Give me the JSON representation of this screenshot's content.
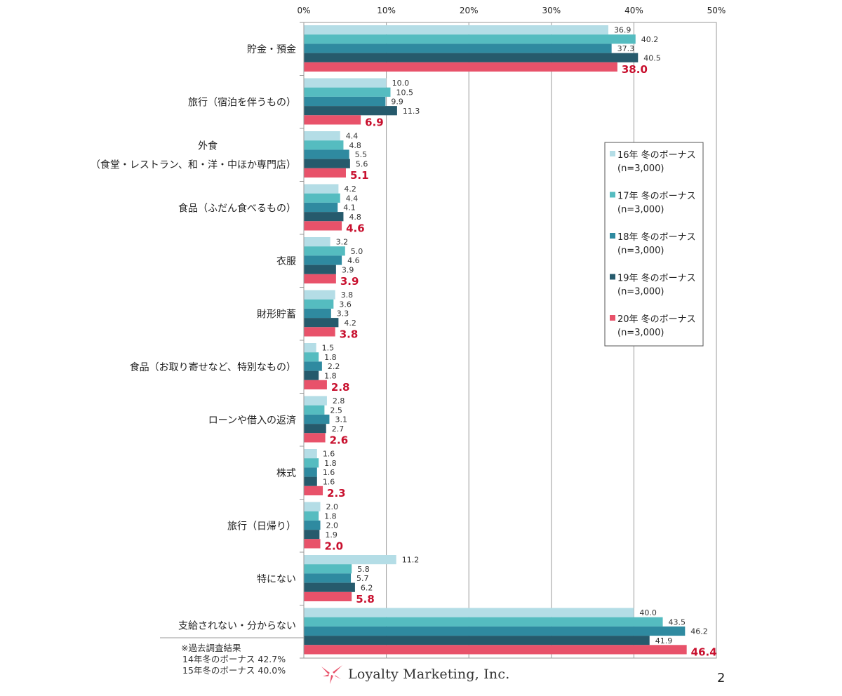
{
  "chart_data": {
    "type": "bar",
    "orientation": "horizontal",
    "categories": [
      "貯金・預金",
      "旅行（宿泊を伴うもの）",
      "外食\n（食堂・レストラン、和・洋・中ほか専門店）",
      "食品（ふだん食べるもの）",
      "衣服",
      "財形貯蓄",
      "食品（お取り寄せなど、特別なもの）",
      "ローンや借入の返済",
      "株式",
      "旅行（日帰り）",
      "特にない",
      "支給されない・分からない"
    ],
    "series": [
      {
        "name": "16年  冬のボーナス",
        "n": "(n=3,000)",
        "color": "#b4dde6",
        "values": [
          36.9,
          10.0,
          4.4,
          4.2,
          3.2,
          3.8,
          1.5,
          2.8,
          1.6,
          2.0,
          11.2,
          40.0
        ]
      },
      {
        "name": "17年  冬のボーナス",
        "n": "(n=3,000)",
        "color": "#55bcc0",
        "values": [
          40.2,
          10.5,
          4.8,
          4.4,
          5.0,
          3.6,
          1.8,
          2.5,
          1.8,
          1.8,
          5.8,
          43.5
        ]
      },
      {
        "name": "18年  冬のボーナス",
        "n": "(n=3,000)",
        "color": "#2f8aa0",
        "values": [
          37.3,
          9.9,
          5.5,
          4.1,
          4.6,
          3.3,
          2.2,
          3.1,
          1.6,
          2.0,
          5.7,
          46.2
        ]
      },
      {
        "name": "19年  冬のボーナス",
        "n": "(n=3,000)",
        "color": "#265a6c",
        "values": [
          40.5,
          11.3,
          5.6,
          4.8,
          3.9,
          4.2,
          1.8,
          2.7,
          1.6,
          1.9,
          6.2,
          41.9
        ]
      },
      {
        "name": "20年  冬のボーナス",
        "n": "(n=3,000)",
        "color": "#e8526a",
        "highlight": true,
        "values": [
          38.0,
          6.9,
          5.1,
          4.6,
          3.9,
          3.8,
          2.8,
          2.6,
          2.3,
          2.0,
          5.8,
          46.4
        ]
      }
    ],
    "xlim": [
      0,
      50
    ],
    "x_ticks": [
      "0%",
      "10%",
      "20%",
      "30%",
      "40%",
      "50%"
    ],
    "x_axis_position": "top",
    "grid": true,
    "legend_placement": "right",
    "highlight_color": "#c8102e"
  },
  "note": {
    "heading": "※過去調査結果",
    "lines": [
      "14年冬のボーナス  42.7%",
      "15年冬のボーナス  40.0%"
    ]
  },
  "logo_text": "Loyalty Marketing, Inc.",
  "page_number": "2"
}
